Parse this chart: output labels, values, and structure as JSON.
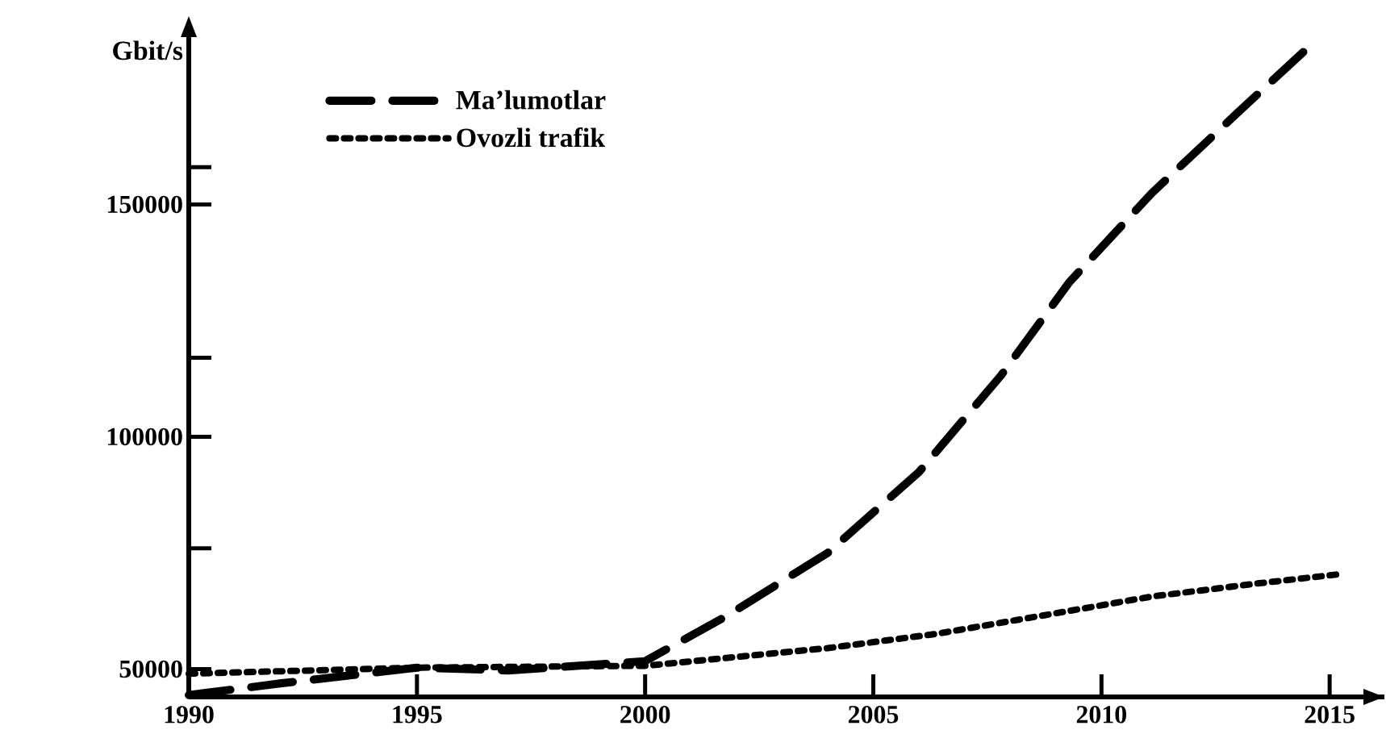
{
  "chart_data": {
    "type": "line",
    "ylabel": "Gbit/s",
    "xlim": [
      1990,
      2016.2
    ],
    "xticks": [
      1990,
      1995,
      2000,
      2005,
      2010,
      2015
    ],
    "ylim": [
      44000,
      186000
    ],
    "yticks": [
      50000,
      {
        "value": 76000,
        "label": null
      },
      100000,
      {
        "value": 117000,
        "label": null
      },
      150000,
      {
        "value": 158000,
        "label": null
      }
    ],
    "legend": "top left",
    "grid": false,
    "series": [
      {
        "name": "Ma’lumotlar",
        "color": "#000000",
        "line_style": "dashed",
        "x": [
          1990,
          1992,
          1995,
          1997,
          2000,
          2001.8,
          2004,
          2006,
          2007.8,
          2009.3,
          2011.1,
          2013.1,
          2014.6
        ],
        "values": [
          44400,
          46900,
          50300,
          49700,
          51700,
          61500,
          75000,
          92400,
          113200,
          133300,
          152400,
          170800,
          184400
        ]
      },
      {
        "name": "Ovozli trafik",
        "color": "#000000",
        "line_style": "dotted",
        "x": [
          1990,
          1995,
          2000,
          2004,
          2006.4,
          2008.7,
          2011.1,
          2013.4,
          2015.3
        ],
        "values": [
          49000,
          50300,
          50700,
          54500,
          57600,
          61500,
          65600,
          68400,
          70500
        ]
      }
    ]
  }
}
